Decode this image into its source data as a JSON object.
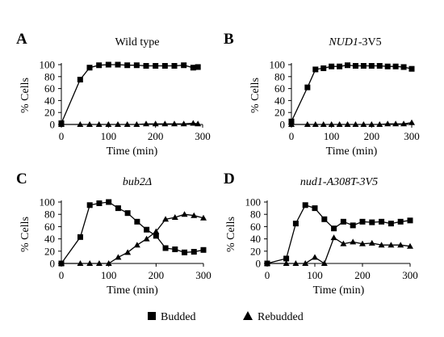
{
  "figure": {
    "legend": {
      "budded_label": "Budded",
      "rebudded_label": "Rebudded"
    }
  },
  "chart_data": [
    {
      "type": "line",
      "panel": "A",
      "title": "Wild type",
      "title_italic": false,
      "xlabel": "Time (min)",
      "ylabel": "% Cells",
      "xlim": [
        0,
        300
      ],
      "ylim": [
        0,
        100
      ],
      "xticks": [
        0,
        100,
        200,
        300
      ],
      "yticks": [
        0,
        20,
        40,
        60,
        80,
        100
      ],
      "x": [
        0,
        40,
        60,
        80,
        100,
        120,
        140,
        160,
        180,
        200,
        220,
        240,
        260,
        280,
        290
      ],
      "series": [
        {
          "name": "Budded",
          "marker": "square",
          "values": [
            2,
            75,
            95,
            99,
            100,
            100,
            99,
            99,
            98,
            98,
            98,
            98,
            99,
            95,
            96
          ]
        },
        {
          "name": "Rebudded",
          "marker": "triangle",
          "values": [
            0,
            0,
            0,
            0,
            0,
            0,
            0,
            0,
            1,
            1,
            1,
            1,
            1,
            2,
            1
          ]
        }
      ],
      "grid": false
    },
    {
      "type": "line",
      "panel": "B",
      "title": "NUD1-3V5",
      "title_italic_part": "NUD1",
      "title_plain_part": "-3V5",
      "xlabel": "Time (min)",
      "ylabel": "% Cells",
      "xlim": [
        0,
        300
      ],
      "ylim": [
        0,
        100
      ],
      "xticks": [
        0,
        100,
        200,
        300
      ],
      "yticks": [
        0,
        20,
        40,
        60,
        80,
        100
      ],
      "x": [
        0,
        40,
        60,
        80,
        100,
        120,
        140,
        160,
        180,
        200,
        220,
        240,
        260,
        280,
        300
      ],
      "series": [
        {
          "name": "Budded",
          "marker": "square",
          "values": [
            5,
            62,
            92,
            94,
            97,
            97,
            99,
            98,
            98,
            98,
            98,
            97,
            97,
            96,
            93
          ]
        },
        {
          "name": "Rebudded",
          "marker": "triangle",
          "values": [
            0,
            0,
            0,
            0,
            0,
            0,
            0,
            0,
            0,
            0,
            0,
            1,
            1,
            1,
            3
          ]
        }
      ],
      "grid": false
    },
    {
      "type": "line",
      "panel": "C",
      "title": "bub2Δ",
      "title_italic": true,
      "xlabel": "Time (min)",
      "ylabel": "% Cells",
      "xlim": [
        0,
        300
      ],
      "ylim": [
        0,
        100
      ],
      "xticks": [
        0,
        100,
        200,
        300
      ],
      "yticks": [
        0,
        20,
        40,
        60,
        80,
        100
      ],
      "x": [
        0,
        40,
        60,
        80,
        100,
        120,
        140,
        160,
        180,
        200,
        220,
        240,
        260,
        280,
        300
      ],
      "series": [
        {
          "name": "Budded",
          "marker": "square",
          "values": [
            0,
            43,
            95,
            98,
            100,
            90,
            82,
            68,
            55,
            45,
            25,
            23,
            18,
            19,
            22
          ]
        },
        {
          "name": "Rebudded",
          "marker": "triangle",
          "values": [
            0,
            0,
            0,
            0,
            0,
            10,
            18,
            30,
            40,
            52,
            72,
            75,
            80,
            78,
            74
          ]
        }
      ],
      "grid": false
    },
    {
      "type": "line",
      "panel": "D",
      "title": "nud1-A308T-3V5",
      "title_italic": true,
      "xlabel": "Time (min)",
      "ylabel": "% Cells",
      "xlim": [
        0,
        300
      ],
      "ylim": [
        0,
        100
      ],
      "xticks": [
        0,
        100,
        200,
        300
      ],
      "yticks": [
        0,
        20,
        40,
        60,
        80,
        100
      ],
      "x": [
        0,
        40,
        60,
        80,
        100,
        120,
        140,
        160,
        180,
        200,
        220,
        240,
        260,
        280,
        300
      ],
      "series": [
        {
          "name": "Budded",
          "marker": "square",
          "values": [
            0,
            8,
            65,
            95,
            90,
            72,
            57,
            68,
            62,
            68,
            67,
            68,
            65,
            68,
            70
          ]
        },
        {
          "name": "Rebudded",
          "marker": "triangle",
          "values": [
            0,
            0,
            0,
            0,
            10,
            0,
            42,
            32,
            35,
            32,
            33,
            30,
            30,
            30,
            28
          ]
        }
      ],
      "grid": false
    }
  ]
}
